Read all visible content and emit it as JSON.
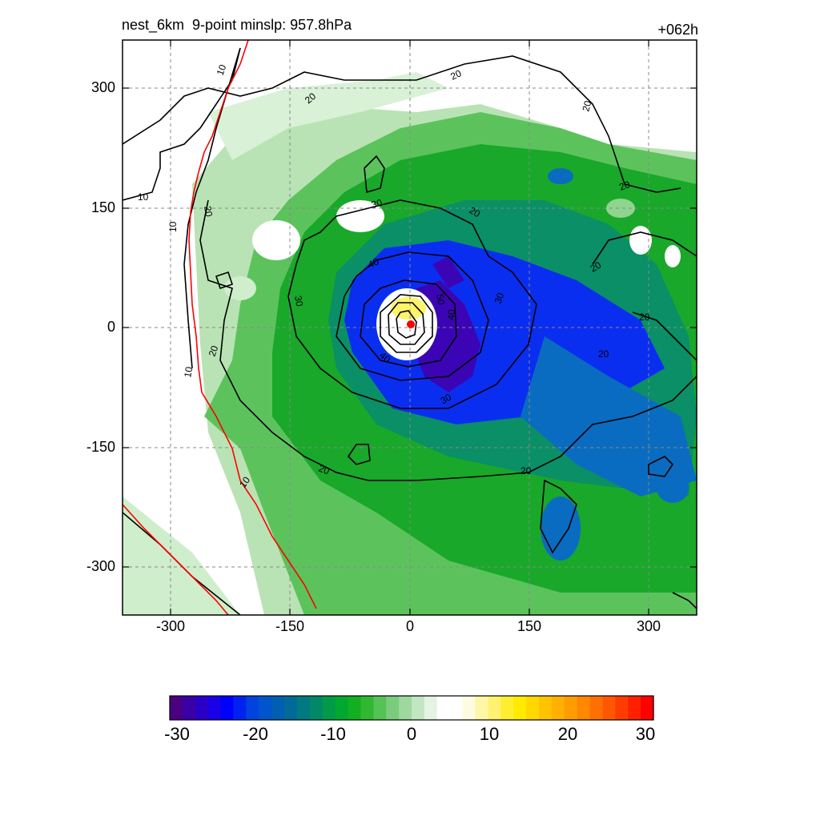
{
  "title": {
    "left": "nest_6km  9-point minslp: 957.8hPa",
    "right": "+062h"
  },
  "axes": {
    "x_ticks": [
      "-300",
      "-150",
      "0",
      "150",
      "300"
    ],
    "y_ticks": [
      "300",
      "150",
      "0",
      "-150",
      "-300"
    ],
    "x_range": [
      -360,
      360
    ],
    "y_range": [
      -360,
      360
    ]
  },
  "contour_labels": [
    "20",
    "20",
    "10",
    "10",
    "20",
    "10",
    "20",
    "30",
    "30",
    "30",
    "40",
    "40",
    "40",
    "50",
    "30",
    "20",
    "20",
    "20",
    "20",
    "20",
    "20",
    "10",
    "10",
    "20",
    "20"
  ],
  "colorbar": {
    "ticks": [
      "-30",
      "-20",
      "-10",
      "0",
      "10",
      "20",
      "30"
    ],
    "range": [
      -30,
      30
    ],
    "colors": [
      "#4b0082",
      "#3a00a6",
      "#2a00c8",
      "#1a00e6",
      "#0000ff",
      "#0022f0",
      "#0044dd",
      "#0055cc",
      "#005fb0",
      "#006b98",
      "#007a80",
      "#008868",
      "#009a48",
      "#00a830",
      "#10b020",
      "#30b830",
      "#55c255",
      "#7acc7a",
      "#9ed89e",
      "#c2e6c2",
      "#e4f3e4",
      "#ffffff",
      "#ffffff",
      "#fffbe0",
      "#fff7a8",
      "#fff270",
      "#ffee30",
      "#ffea00",
      "#ffd800",
      "#ffc400",
      "#ffb000",
      "#ff9c00",
      "#ff8800",
      "#ff7000",
      "#ff5800",
      "#ff3c00",
      "#ff2000",
      "#ff0000"
    ]
  },
  "legend_colors": {
    "coast": "#ff0000",
    "contour": "#000000",
    "center_marker": "#ff0000"
  },
  "center_marker": "red-dot"
}
